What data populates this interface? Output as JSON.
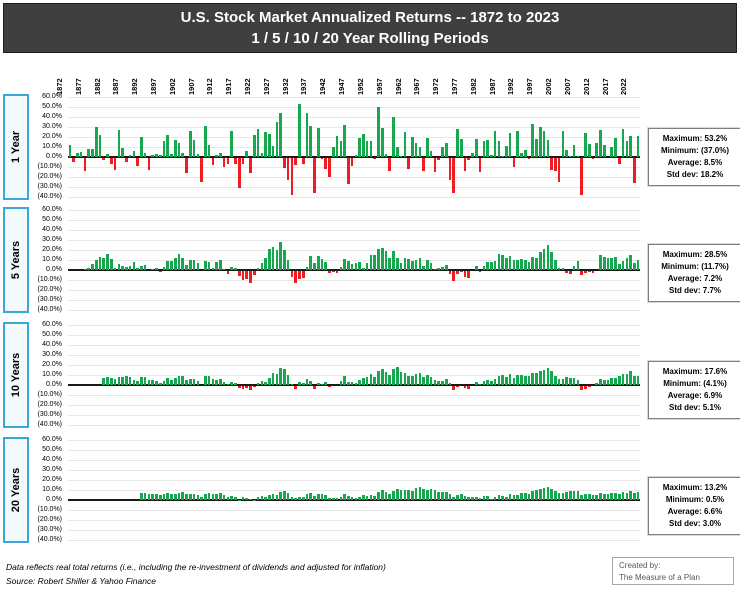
{
  "title": {
    "line1": "U.S. Stock Market Annualized Returns -- 1872 to 2023",
    "line2": "1 / 5 / 10 / 20 Year Rolling Periods"
  },
  "colors": {
    "positive_bar": "#17a74f",
    "negative_bar": "#ee1d23",
    "title_bg": "#3f3f3f",
    "panel_label_border": "#3aa7dc",
    "grid": "#e7e7e7",
    "zero_axis": "#1a1a1a"
  },
  "axis": {
    "year_ticks": [
      1872,
      1877,
      1882,
      1887,
      1892,
      1897,
      1902,
      1907,
      1912,
      1917,
      1922,
      1927,
      1932,
      1937,
      1942,
      1947,
      1952,
      1957,
      1962,
      1967,
      1972,
      1977,
      1982,
      1987,
      1992,
      1997,
      2002,
      2007,
      2012,
      2017,
      2022
    ],
    "y_tick_labels": [
      "60.0%",
      "50.0%",
      "40.0%",
      "30.0%",
      "20.0%",
      "10.0%",
      "0.0%",
      "(10.0%)",
      "(20.0%)",
      "(30.0%)",
      "(40.0%)"
    ],
    "ylim": [
      -40,
      60
    ],
    "x_start_year": 1872,
    "x_end_year": 2023
  },
  "panels": [
    {
      "label": "1 Year",
      "stats": [
        "Maximum: 53.2%",
        "Minimum: (37.0%)",
        "Average: 8.5%",
        "Std dev: 18.2%"
      ]
    },
    {
      "label": "5 Years",
      "stats": [
        "Maximum: 28.5%",
        "Minimum: (11.7%)",
        "Average: 7.2%",
        "Std dev: 7.7%"
      ]
    },
    {
      "label": "10 Years",
      "stats": [
        "Maximum: 17.6%",
        "Minimum: (4.1%)",
        "Average: 6.9%",
        "Std dev: 5.1%"
      ]
    },
    {
      "label": "20 Years",
      "stats": [
        "Maximum: 13.2%",
        "Minimum: 0.5%",
        "Average: 6.6%",
        "Std dev: 3.0%"
      ]
    }
  ],
  "chart_data": [
    {
      "type": "bar",
      "name": "1 Year Rolling Real Annualized Return (%)",
      "start_year": 1872,
      "end_year": 2023,
      "ylim": [
        -40,
        60
      ],
      "values": [
        12,
        -4,
        4,
        5,
        -13,
        8,
        8,
        30,
        22,
        -2,
        3,
        -6,
        -12,
        27,
        9,
        -4,
        2,
        6,
        -8,
        20,
        4,
        -12,
        2,
        3,
        2,
        16,
        22,
        3,
        17,
        14,
        4,
        -15,
        26,
        17,
        3,
        -24,
        31,
        12,
        -7,
        2,
        4,
        -9,
        -6,
        26,
        -6,
        -30,
        -6,
        6,
        -15,
        22,
        28,
        4,
        25,
        23,
        11,
        35,
        44,
        -10,
        -22,
        -37,
        -7,
        53.2,
        -6,
        44,
        31,
        -35,
        29,
        -1,
        -11,
        -19,
        10,
        21,
        16,
        32,
        -26,
        -8,
        2,
        19,
        23,
        16,
        16,
        -1,
        50,
        29,
        3,
        -13,
        40,
        10,
        1,
        25,
        -11,
        20,
        14,
        10,
        -13,
        19,
        6,
        -14,
        -2,
        10,
        14,
        -22,
        -35,
        28,
        18,
        -13,
        -2,
        4,
        18,
        -14,
        16,
        17,
        2,
        26,
        16,
        1,
        11,
        24,
        -9,
        26,
        4,
        7,
        -1,
        33,
        18,
        30,
        26,
        17,
        -12,
        -13,
        -24,
        26,
        7,
        1,
        12,
        1,
        -37,
        24,
        13,
        -1,
        14,
        27,
        12,
        0,
        10,
        19,
        -6,
        28,
        16,
        21,
        -25,
        21
      ]
    },
    {
      "type": "bar",
      "name": "5 Year Rolling Real Annualized Return (%)",
      "start_year": 1876,
      "end_year": 2023,
      "ylim": [
        -40,
        60
      ],
      "values": [
        1,
        2,
        6,
        10,
        13,
        12,
        16,
        11,
        2,
        6,
        4,
        3,
        4,
        8,
        2,
        4,
        5,
        0,
        1,
        2,
        -1,
        3,
        9,
        9,
        12,
        16,
        12,
        5,
        10,
        10,
        7,
        0,
        9,
        8,
        2,
        8,
        10,
        1,
        -3,
        3,
        2,
        -5,
        -9,
        -8,
        -11.7,
        -4,
        2,
        7,
        12,
        21,
        23,
        20,
        28.5,
        20,
        10,
        -6,
        -12,
        -8,
        -7,
        3,
        14,
        7,
        14,
        11,
        8,
        -2,
        -1,
        -2,
        3,
        11,
        9,
        6,
        7,
        8,
        2,
        7,
        15,
        15,
        21,
        22,
        19,
        12,
        19,
        12,
        7,
        12,
        11,
        9,
        10,
        12,
        4,
        10,
        7,
        1,
        2,
        3,
        5,
        -3,
        -10,
        -3,
        -1,
        -6,
        -7,
        0,
        4,
        -1,
        4,
        8,
        8,
        9,
        16,
        15,
        12,
        14,
        10,
        10,
        11,
        10,
        8,
        13,
        12,
        18,
        21,
        25,
        18,
        10,
        2,
        2,
        -2,
        -3,
        4,
        9,
        -4,
        -2,
        -1,
        -2,
        0,
        15,
        13,
        12,
        12,
        13,
        6,
        9,
        12,
        15,
        7,
        10
      ]
    },
    {
      "type": "bar",
      "name": "10 Year Rolling Real Annualized Return (%)",
      "start_year": 1881,
      "end_year": 2023,
      "ylim": [
        -40,
        60
      ],
      "values": [
        7,
        8,
        7,
        6,
        8,
        8,
        9,
        8,
        5,
        4,
        8,
        8,
        5,
        5,
        4,
        2,
        4,
        7,
        5,
        7,
        9,
        9,
        5,
        6,
        6,
        4,
        0,
        9,
        9,
        6,
        5,
        6,
        3,
        1,
        3,
        2,
        -2,
        -3,
        -2,
        -4.1,
        -1,
        2,
        4,
        3,
        7,
        12,
        11,
        17,
        16,
        10,
        1,
        -3,
        3,
        2,
        6,
        4,
        -3,
        2,
        1,
        3,
        -1,
        0,
        0,
        4,
        9,
        3,
        3,
        2,
        5,
        7,
        8,
        11,
        8,
        14,
        16,
        13,
        10,
        16,
        17.6,
        13,
        12,
        9,
        9,
        11,
        12,
        8,
        10,
        8,
        5,
        4,
        4,
        6,
        2,
        -4,
        -1,
        0,
        -2,
        -3,
        0,
        3,
        1,
        4,
        5,
        4,
        6,
        9,
        10,
        8,
        11,
        7,
        10,
        10,
        9,
        9,
        12,
        12,
        14,
        15,
        17,
        14,
        9,
        6,
        6,
        8,
        7,
        7,
        5,
        -4,
        -3,
        -1,
        0,
        2,
        6,
        5,
        5,
        7,
        7,
        9,
        11,
        11,
        14,
        9,
        9
      ]
    },
    {
      "type": "bar",
      "name": "20 Year Rolling Real Annualized Return (%)",
      "start_year": 1891,
      "end_year": 2023,
      "ylim": [
        -40,
        60
      ],
      "values": [
        7,
        7,
        6,
        6,
        6,
        5,
        6,
        7,
        6,
        6,
        7,
        8,
        6,
        6,
        6,
        5,
        3,
        6,
        7,
        6,
        6,
        7,
        5,
        3,
        4,
        3,
        0.5,
        3,
        2,
        1,
        0.5,
        3,
        4,
        3,
        5,
        6,
        5,
        8,
        9,
        7,
        3,
        2,
        3,
        3,
        6,
        7,
        4,
        6,
        6,
        5,
        2,
        2,
        2,
        3,
        6,
        4,
        3,
        2,
        3,
        5,
        4,
        5,
        4,
        8,
        10,
        8,
        6,
        9,
        11,
        10,
        10,
        10,
        9,
        12,
        13,
        11,
        10,
        11,
        10,
        8,
        8,
        8,
        6,
        3,
        5,
        6,
        4,
        3,
        3,
        3,
        2,
        4,
        4,
        1,
        3,
        5,
        4,
        3,
        6,
        5,
        5,
        7,
        7,
        6,
        9,
        10,
        11,
        12,
        13.2,
        11,
        9,
        7,
        7,
        8,
        9,
        9,
        9,
        5,
        6,
        6,
        5,
        5,
        7,
        6,
        6,
        7,
        7,
        6,
        8,
        7,
        9,
        7,
        8
      ]
    }
  ],
  "footer": {
    "note1": "Data reflects real total returns (i.e., including the re-investment of dividends and adjusted for inflation)",
    "note2": "Source: Robert Shiller & Yahoo Finance",
    "created_by_label": "Created by:",
    "created_by_name": "The Measure of a Plan"
  }
}
